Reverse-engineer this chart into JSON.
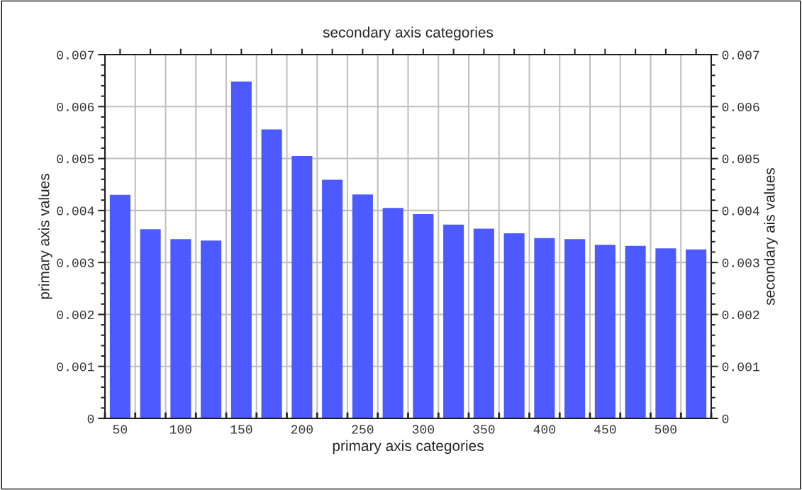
{
  "chart_data": {
    "type": "bar",
    "xlabel": "primary axis categories",
    "ylabel": "primary axis values",
    "x2label": "secondary axis categories",
    "y2label": "secondary ais values",
    "categories": [
      "50",
      null,
      "100",
      null,
      "150",
      null,
      "200",
      null,
      "250",
      null,
      "300",
      null,
      "350",
      null,
      "400",
      null,
      "450",
      null,
      "500",
      null
    ],
    "values": [
      0.0043,
      0.00364,
      0.00345,
      0.00342,
      0.00648,
      0.00556,
      0.00505,
      0.00459,
      0.00431,
      0.00405,
      0.00393,
      0.00373,
      0.00365,
      0.00356,
      0.00347,
      0.00345,
      0.00334,
      0.00332,
      0.00327,
      0.00325
    ],
    "color": "#4c5aff",
    "ylim": [
      0,
      0.007
    ],
    "yticks": [
      {
        "value": 0,
        "label": "0"
      },
      {
        "value": 0.001,
        "label": "0.001"
      },
      {
        "value": 0.002,
        "label": "0.002"
      },
      {
        "value": 0.003,
        "label": "0.003"
      },
      {
        "value": 0.004,
        "label": "0.004"
      },
      {
        "value": 0.005,
        "label": "0.005"
      },
      {
        "value": 0.006,
        "label": "0.006"
      },
      {
        "value": 0.007,
        "label": "0.007"
      }
    ],
    "y2lim": [
      0,
      0.007
    ],
    "y2ticks": [
      {
        "value": 0,
        "label": "0"
      },
      {
        "value": 0.001,
        "label": "0.001"
      },
      {
        "value": 0.002,
        "label": "0.002"
      },
      {
        "value": 0.003,
        "label": "0.003"
      },
      {
        "value": 0.004,
        "label": "0.004"
      },
      {
        "value": 0.005,
        "label": "0.005"
      },
      {
        "value": 0.006,
        "label": "0.006"
      },
      {
        "value": 0.007,
        "label": "0.007"
      }
    ],
    "grid": true
  }
}
